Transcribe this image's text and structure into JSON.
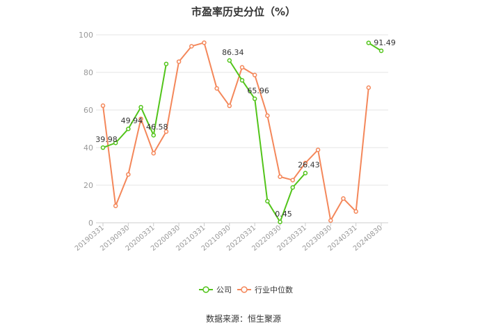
{
  "chart_data": {
    "type": "line",
    "title": "市盈率历史分位（%）",
    "source": "数据来源：恒生聚源",
    "ylim": [
      0,
      100
    ],
    "yticks": [
      0,
      20,
      40,
      60,
      80,
      100
    ],
    "grid": true,
    "legend_position": "bottom",
    "categories": [
      "20190331",
      "20190630",
      "20190930",
      "20191231",
      "20200331",
      "20200630",
      "20200930",
      "20201231",
      "20210331",
      "20210630",
      "20210930",
      "20211231",
      "20220331",
      "20220630",
      "20220930",
      "20221231",
      "20230331",
      "20230630",
      "20230930",
      "20231231",
      "20240331",
      "20240630",
      "20240830"
    ],
    "xtick_labels": [
      "20190331",
      "20190930",
      "20200331",
      "20200930",
      "20210331",
      "20210930",
      "20220331",
      "20220930",
      "20230331",
      "20230930",
      "20240331",
      "20240830"
    ],
    "series": [
      {
        "name": "公司",
        "color": "#52c41a",
        "values": [
          39.98,
          42.5,
          49.94,
          61.5,
          46.58,
          84.5,
          null,
          null,
          null,
          null,
          86.34,
          75.8,
          65.96,
          11.5,
          0.45,
          18.8,
          26.43,
          null,
          null,
          null,
          null,
          95.7,
          91.49
        ],
        "labels": [
          "39.98",
          null,
          "49.94",
          null,
          "46.58",
          null,
          null,
          null,
          null,
          null,
          "86.34",
          null,
          "65.96",
          null,
          "0.45",
          null,
          "26.43",
          null,
          null,
          null,
          null,
          null,
          "91.49"
        ]
      },
      {
        "name": "行业中位数",
        "color": "#f4875a",
        "values": [
          62.3,
          9.0,
          25.7,
          55.3,
          37.0,
          48.5,
          85.7,
          93.9,
          95.8,
          71.5,
          62.2,
          82.7,
          78.6,
          57.0,
          24.5,
          22.7,
          31.8,
          38.8,
          1.2,
          12.9,
          6.0,
          71.9,
          null
        ],
        "labels": []
      }
    ]
  }
}
